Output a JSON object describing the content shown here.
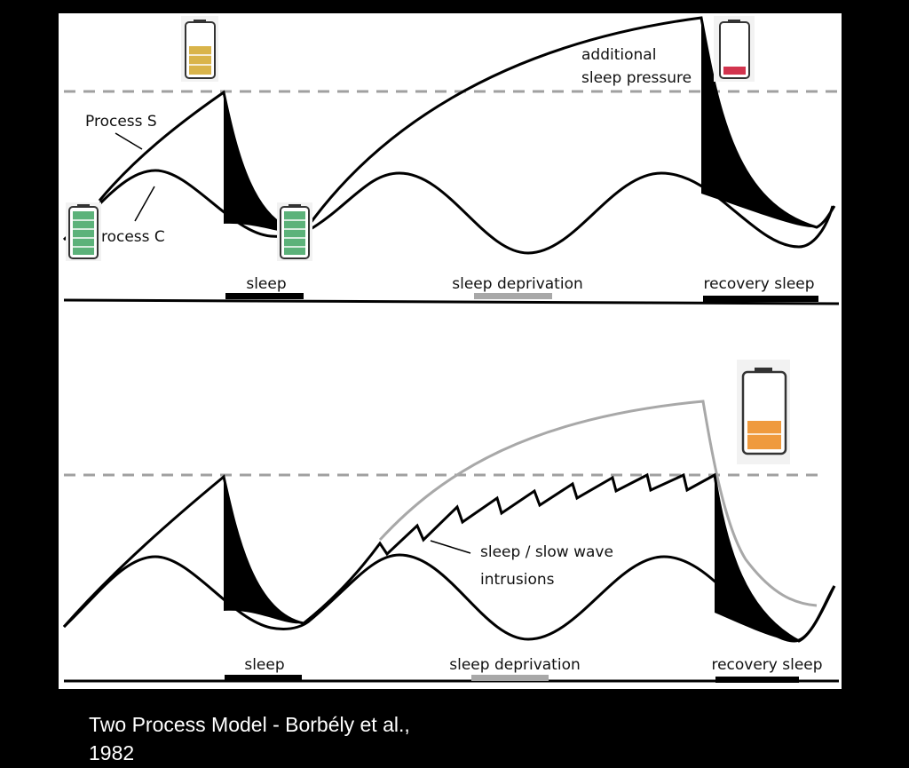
{
  "colors": {
    "background": "#000000",
    "panel": "#ffffff",
    "ink": "#000000",
    "threshold_dash": "#a0a0a0",
    "deprivation_bar": "#a8a8a8",
    "battery_full": "#5cb27a",
    "battery_half": "#d9b44a",
    "battery_low": "#d2344e",
    "battery_orange": "#ef9a3e",
    "gray_curve": "#a8a8a8"
  },
  "top_panel": {
    "process_s_label": "Process S",
    "process_c_label": "Process C",
    "annotation_line1": "additional",
    "annotation_line2": "sleep pressure",
    "sleep_label": "sleep",
    "deprivation_label": "sleep deprivation",
    "recovery_label": "recovery sleep",
    "battery_icons": [
      "battery-full-icon",
      "battery-half-icon",
      "battery-full-icon",
      "battery-low-icon"
    ]
  },
  "bottom_panel": {
    "intrusions_line1": "sleep / slow wave",
    "intrusions_line2": "intrusions",
    "sleep_label": "sleep",
    "deprivation_label": "sleep deprivation",
    "recovery_label": "recovery sleep",
    "battery_icons": [
      "battery-low-orange-icon"
    ]
  },
  "caption": {
    "line1": "Two Process Model - Borbély et al.,",
    "line2": "1982"
  }
}
